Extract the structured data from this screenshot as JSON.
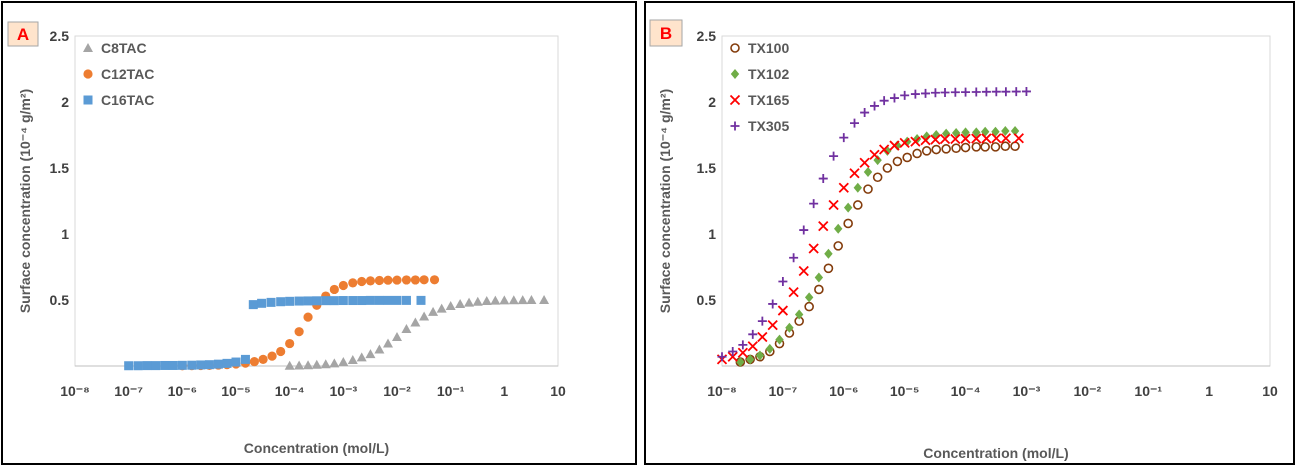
{
  "chart_data": [
    {
      "type": "scatter",
      "panel_label": "A",
      "xlabel": "Concentration (mol/L)",
      "ylabel": "Surface concentration (10⁻⁴ g/m²)",
      "x_scale": "log",
      "xlim": [
        1e-08,
        10
      ],
      "ylim": [
        0,
        2.5
      ],
      "x_tick_labels": [
        "10⁻⁸",
        "10⁻⁷",
        "10⁻⁶",
        "10⁻⁵",
        "10⁻⁴",
        "10⁻³",
        "10⁻²",
        "10⁻¹",
        "1",
        "10"
      ],
      "y_tick_labels": [
        "2.5",
        "2",
        "1.5",
        "1",
        "0.5"
      ],
      "legend_position": "top-left",
      "series": [
        {
          "name": "C8TAC",
          "marker": "triangle",
          "color": "#a5a5a5",
          "points": [
            [
              0.0001,
              0.002
            ],
            [
              0.00015,
              0.004
            ],
            [
              0.00022,
              0.006
            ],
            [
              0.00032,
              0.009
            ],
            [
              0.00047,
              0.013
            ],
            [
              0.00068,
              0.02
            ],
            [
              0.001,
              0.03
            ],
            [
              0.0015,
              0.045
            ],
            [
              0.0022,
              0.065
            ],
            [
              0.0032,
              0.09
            ],
            [
              0.0047,
              0.125
            ],
            [
              0.0068,
              0.17
            ],
            [
              0.01,
              0.22
            ],
            [
              0.015,
              0.28
            ],
            [
              0.022,
              0.33
            ],
            [
              0.032,
              0.375
            ],
            [
              0.047,
              0.41
            ],
            [
              0.068,
              0.435
            ],
            [
              0.1,
              0.455
            ],
            [
              0.15,
              0.47
            ],
            [
              0.22,
              0.48
            ],
            [
              0.32,
              0.487
            ],
            [
              0.47,
              0.492
            ],
            [
              0.68,
              0.495
            ],
            [
              1,
              0.497
            ],
            [
              1.5,
              0.498
            ],
            [
              2.2,
              0.499
            ],
            [
              3.2,
              0.5
            ],
            [
              5.5,
              0.5
            ]
          ]
        },
        {
          "name": "C12TAC",
          "marker": "circle",
          "color": "#ed7d31",
          "points": [
            [
              1e-06,
              0.002
            ],
            [
              1.5e-06,
              0.003
            ],
            [
              2.2e-06,
              0.004
            ],
            [
              3.2e-06,
              0.005
            ],
            [
              4.7e-06,
              0.007
            ],
            [
              6.8e-06,
              0.01
            ],
            [
              1e-05,
              0.015
            ],
            [
              1.5e-05,
              0.022
            ],
            [
              2.2e-05,
              0.033
            ],
            [
              3.2e-05,
              0.05
            ],
            [
              4.7e-05,
              0.075
            ],
            [
              6.8e-05,
              0.11
            ],
            [
              0.0001,
              0.17
            ],
            [
              0.00015,
              0.26
            ],
            [
              0.00022,
              0.37
            ],
            [
              0.00032,
              0.46
            ],
            [
              0.00047,
              0.53
            ],
            [
              0.00068,
              0.58
            ],
            [
              0.001,
              0.61
            ],
            [
              0.0015,
              0.63
            ],
            [
              0.0022,
              0.64
            ],
            [
              0.0032,
              0.645
            ],
            [
              0.0047,
              0.648
            ],
            [
              0.0068,
              0.65
            ],
            [
              0.01,
              0.651
            ],
            [
              0.015,
              0.652
            ],
            [
              0.022,
              0.652
            ],
            [
              0.032,
              0.653
            ],
            [
              0.05,
              0.653
            ]
          ]
        },
        {
          "name": "C16TAC",
          "marker": "square",
          "color": "#5b9bd5",
          "points": [
            [
              1e-07,
              0.002
            ],
            [
              1.5e-07,
              0.002
            ],
            [
              2.2e-07,
              0.003
            ],
            [
              3.2e-07,
              0.003
            ],
            [
              4.7e-07,
              0.004
            ],
            [
              6.8e-07,
              0.004
            ],
            [
              1e-06,
              0.005
            ],
            [
              1.5e-06,
              0.006
            ],
            [
              2.2e-06,
              0.008
            ],
            [
              3.2e-06,
              0.01
            ],
            [
              4.7e-06,
              0.014
            ],
            [
              6.8e-06,
              0.02
            ],
            [
              1e-05,
              0.03
            ],
            [
              1.5e-05,
              0.05
            ],
            [
              2.1e-05,
              0.465
            ],
            [
              3e-05,
              0.475
            ],
            [
              4.5e-05,
              0.482
            ],
            [
              6.8e-05,
              0.487
            ],
            [
              0.0001,
              0.49
            ],
            [
              0.00015,
              0.492
            ],
            [
              0.00022,
              0.493
            ],
            [
              0.00032,
              0.494
            ],
            [
              0.00047,
              0.495
            ],
            [
              0.00068,
              0.495
            ],
            [
              0.001,
              0.496
            ],
            [
              0.0015,
              0.496
            ],
            [
              0.0022,
              0.496
            ],
            [
              0.0032,
              0.497
            ],
            [
              0.0047,
              0.497
            ],
            [
              0.0068,
              0.497
            ],
            [
              0.01,
              0.497
            ],
            [
              0.015,
              0.497
            ],
            [
              0.028,
              0.497
            ]
          ]
        }
      ]
    },
    {
      "type": "scatter",
      "panel_label": "B",
      "xlabel": "Concentration (mol/L)",
      "ylabel": "Surface concentration (10⁻⁴ g/m²)",
      "x_scale": "log",
      "xlim": [
        1e-08,
        10
      ],
      "ylim": [
        0,
        2.5
      ],
      "x_tick_labels": [
        "10⁻⁸",
        "10⁻⁷",
        "10⁻⁶",
        "10⁻⁵",
        "10⁻⁴",
        "10⁻³",
        "10⁻²",
        "10⁻¹",
        "1",
        "10"
      ],
      "y_tick_labels": [
        "2.5",
        "2",
        "1.5",
        "1",
        "0.5"
      ],
      "legend_position": "top-left",
      "series": [
        {
          "name": "TX100",
          "marker": "open-circle",
          "color": "#843c0c",
          "points": [
            [
              2e-08,
              0.03
            ],
            [
              2.9e-08,
              0.05
            ],
            [
              4.2e-08,
              0.07
            ],
            [
              6.1e-08,
              0.11
            ],
            [
              8.8e-08,
              0.17
            ],
            [
              1.28e-07,
              0.25
            ],
            [
              1.85e-07,
              0.34
            ],
            [
              2.7e-07,
              0.45
            ],
            [
              3.9e-07,
              0.58
            ],
            [
              5.6e-07,
              0.74
            ],
            [
              8.1e-07,
              0.91
            ],
            [
              1.18e-06,
              1.08
            ],
            [
              1.7e-06,
              1.22
            ],
            [
              2.5e-06,
              1.34
            ],
            [
              3.6e-06,
              1.43
            ],
            [
              5.2e-06,
              1.5
            ],
            [
              7.6e-06,
              1.55
            ],
            [
              1.1e-05,
              1.58
            ],
            [
              1.6e-05,
              1.61
            ],
            [
              2.3e-05,
              1.63
            ],
            [
              3.3e-05,
              1.64
            ],
            [
              4.8e-05,
              1.645
            ],
            [
              7e-05,
              1.65
            ],
            [
              0.0001,
              1.655
            ],
            [
              0.00015,
              1.66
            ],
            [
              0.00021,
              1.66
            ],
            [
              0.00031,
              1.66
            ],
            [
              0.00045,
              1.665
            ],
            [
              0.00065,
              1.665
            ]
          ]
        },
        {
          "name": "TX102",
          "marker": "diamond",
          "color": "#70ad47",
          "points": [
            [
              2e-08,
              0.03
            ],
            [
              2.9e-08,
              0.05
            ],
            [
              4.2e-08,
              0.08
            ],
            [
              6.1e-08,
              0.13
            ],
            [
              8.8e-08,
              0.2
            ],
            [
              1.28e-07,
              0.29
            ],
            [
              1.85e-07,
              0.39
            ],
            [
              2.7e-07,
              0.52
            ],
            [
              3.9e-07,
              0.67
            ],
            [
              5.6e-07,
              0.85
            ],
            [
              8.1e-07,
              1.04
            ],
            [
              1.18e-06,
              1.2
            ],
            [
              1.7e-06,
              1.35
            ],
            [
              2.5e-06,
              1.47
            ],
            [
              3.6e-06,
              1.56
            ],
            [
              5.2e-06,
              1.63
            ],
            [
              7.6e-06,
              1.67
            ],
            [
              1.1e-05,
              1.7
            ],
            [
              1.6e-05,
              1.72
            ],
            [
              2.3e-05,
              1.74
            ],
            [
              3.3e-05,
              1.75
            ],
            [
              4.8e-05,
              1.76
            ],
            [
              7e-05,
              1.765
            ],
            [
              0.0001,
              1.77
            ],
            [
              0.00015,
              1.77
            ],
            [
              0.00021,
              1.775
            ],
            [
              0.00031,
              1.775
            ],
            [
              0.00045,
              1.78
            ],
            [
              0.00065,
              1.78
            ]
          ]
        },
        {
          "name": "TX165",
          "marker": "cross",
          "color": "#ff0000",
          "points": [
            [
              1e-08,
              0.05
            ],
            [
              1.5e-08,
              0.07
            ],
            [
              2.2e-08,
              0.1
            ],
            [
              3.2e-08,
              0.15
            ],
            [
              4.6e-08,
              0.22
            ],
            [
              6.8e-08,
              0.31
            ],
            [
              1e-07,
              0.42
            ],
            [
              1.5e-07,
              0.56
            ],
            [
              2.2e-07,
              0.72
            ],
            [
              3.2e-07,
              0.89
            ],
            [
              4.6e-07,
              1.06
            ],
            [
              6.8e-07,
              1.22
            ],
            [
              1e-06,
              1.35
            ],
            [
              1.5e-06,
              1.46
            ],
            [
              2.2e-06,
              1.54
            ],
            [
              3.2e-06,
              1.6
            ],
            [
              4.6e-06,
              1.64
            ],
            [
              6.8e-06,
              1.67
            ],
            [
              1e-05,
              1.69
            ],
            [
              1.5e-05,
              1.7
            ],
            [
              2.2e-05,
              1.71
            ],
            [
              3.2e-05,
              1.715
            ],
            [
              4.6e-05,
              1.72
            ],
            [
              6.8e-05,
              1.72
            ],
            [
              0.0001,
              1.722
            ],
            [
              0.00015,
              1.723
            ],
            [
              0.00022,
              1.724
            ],
            [
              0.00032,
              1.725
            ],
            [
              0.00046,
              1.725
            ],
            [
              0.00075,
              1.725
            ]
          ]
        },
        {
          "name": "TX305",
          "marker": "plus",
          "color": "#7030a0",
          "points": [
            [
              1e-08,
              0.07
            ],
            [
              1.5e-08,
              0.11
            ],
            [
              2.2e-08,
              0.16
            ],
            [
              3.2e-08,
              0.24
            ],
            [
              4.6e-08,
              0.34
            ],
            [
              6.8e-08,
              0.47
            ],
            [
              1e-07,
              0.64
            ],
            [
              1.5e-07,
              0.82
            ],
            [
              2.2e-07,
              1.03
            ],
            [
              3.2e-07,
              1.23
            ],
            [
              4.6e-07,
              1.42
            ],
            [
              6.8e-07,
              1.59
            ],
            [
              1e-06,
              1.73
            ],
            [
              1.5e-06,
              1.84
            ],
            [
              2.2e-06,
              1.92
            ],
            [
              3.2e-06,
              1.97
            ],
            [
              4.6e-06,
              2.01
            ],
            [
              6.8e-06,
              2.03
            ],
            [
              1e-05,
              2.05
            ],
            [
              1.5e-05,
              2.06
            ],
            [
              2.2e-05,
              2.065
            ],
            [
              3.2e-05,
              2.07
            ],
            [
              4.6e-05,
              2.072
            ],
            [
              6.8e-05,
              2.074
            ],
            [
              0.0001,
              2.075
            ],
            [
              0.00015,
              2.076
            ],
            [
              0.00022,
              2.077
            ],
            [
              0.00032,
              2.078
            ],
            [
              0.00046,
              2.078
            ],
            [
              0.00068,
              2.079
            ],
            [
              0.001,
              2.08
            ]
          ]
        }
      ]
    }
  ]
}
